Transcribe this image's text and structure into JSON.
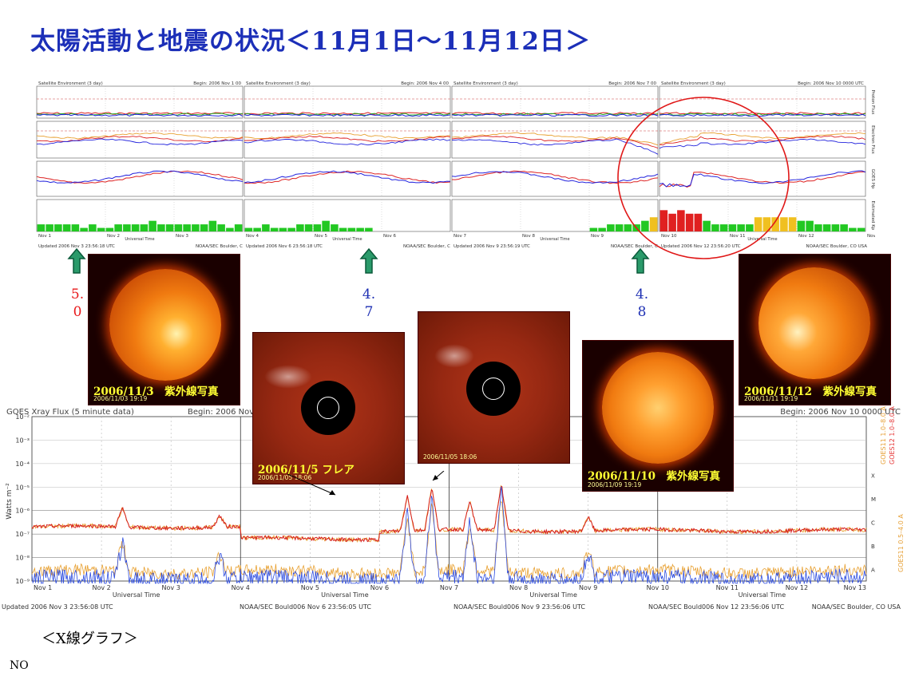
{
  "title": "太陽活動と地震の状況＜11月1日～11月12日＞",
  "xray_caption": "＜X線グラフ＞",
  "footer_note": "NO",
  "magnitudes": [
    {
      "value": "5.0",
      "color": "#e8181a"
    },
    {
      "value": "4.7",
      "color": "#1d2fb3"
    },
    {
      "value": "4.8",
      "color": "#1d2fb3"
    }
  ],
  "photos": [
    {
      "caption": "2006/11/3　紫外線写真",
      "stamp": "2006/11/03 19:19"
    },
    {
      "caption": "2006/11/5  フレア",
      "stamp": "2006/11/05 18:06"
    },
    {
      "caption": "",
      "stamp": "2006/11/05 18:06"
    },
    {
      "caption": "2006/11/10　紫外線写真",
      "stamp": "2006/11/09 19:19"
    },
    {
      "caption": "2006/11/12　紫外線写真",
      "stamp": "2006/11/11 19:19"
    }
  ],
  "env_panels": [
    {
      "header": "Satellite Environment (3 day)",
      "begin": "Begin: 2006 Nov 1 00",
      "updated": "Updated 2006 Nov 3 23:56:18 UTC",
      "days": [
        "Nov 1",
        "Nov 2",
        "Nov 3"
      ],
      "credit": ""
    },
    {
      "header": "Satellite Environment (3 day)",
      "begin": "Begin: 2006 Nov 4 00",
      "updated": "Updated 2006 Nov 6 23:56:18 UTC",
      "days": [
        "Nov 4",
        "Nov 5",
        "Nov 6"
      ],
      "credit": "NOAA/SEC Boulder, C"
    },
    {
      "header": "Satellite Environment (3 day)",
      "begin": "Begin: 2006 Nov 7 00",
      "updated": "Updated 2006 Nov 9 23:56:19 UTC",
      "days": [
        "Nov 7",
        "Nov 8",
        "Nov 9"
      ],
      "credit": "NOAA/SEC Boulder, C"
    },
    {
      "header": "Satellite Environment (3 day)",
      "begin": "Begin: 2006 Nov 10 0000 UTC",
      "updated": "Updated 2006 Nov 12 23:56:20 UTC",
      "days": [
        "Nov 10",
        "Nov 11",
        "Nov 12",
        "Nov 13"
      ],
      "credit": "NOAA/SEC Boulder, C"
    }
  ],
  "env_axis": {
    "time_label": "Universal Time",
    "right_labels": [
      "Proton Flux",
      "Electron Flux",
      "GOES Hp",
      "Estimated Kp"
    ],
    "final_credit": "NOAA/SEC Boulder, CO USA"
  },
  "xray_axis": {
    "title": "GOES Xray Flux (5 minute data)",
    "begin_labels": [
      "Begin:  2006 Nov",
      "Begin:  2006 Nov 10 0000 UTC"
    ],
    "ylabel": "Watts m⁻²",
    "yticks": [
      "10⁻²",
      "10⁻³",
      "10⁻⁴",
      "10⁻⁵",
      "10⁻⁶",
      "10⁻⁷",
      "10⁻⁸",
      "10⁻⁹"
    ],
    "class_labels": [
      "X",
      "M",
      "C",
      "B",
      "A"
    ],
    "xlabel": "Universal Time",
    "legend": [
      {
        "text": "GOES11 1.0–8.0 A",
        "color": "#e7a23a"
      },
      {
        "text": "GOES12 1.0–8.0 A",
        "color": "#e63a3a"
      },
      {
        "text": "GOES11 0.5–4.0 A",
        "color": "#e7a23a"
      },
      {
        "text": "GOES12 0.5–4.0 A",
        "color": "#3a5ae6"
      }
    ],
    "updated": [
      "Updated 2006 Nov  3 23:56:08 UTC",
      "NOAA/SEC Bould006 Nov  6 23:56:05 UTC",
      "NOAA/SEC Bould006 Nov  9 23:56:06 UTC",
      "NOAA/SEC Bould006 Nov 12 23:56:06 UTC",
      "NOAA/SEC Boulder, CO USA"
    ]
  },
  "chart_data": [
    {
      "type": "bar",
      "name_hint": "estimated-kp",
      "x": [
        "Nov 1",
        "Nov 2",
        "Nov 3",
        "Nov 4",
        "Nov 5",
        "Nov 6",
        "Nov 7",
        "Nov 8",
        "Nov 9",
        "Nov 10",
        "Nov 11",
        "Nov 12"
      ],
      "ylim": [
        0,
        9
      ],
      "kp": [
        [
          2,
          2,
          2,
          2,
          2,
          1,
          2,
          1,
          1,
          2,
          2,
          2,
          2,
          3,
          2,
          2,
          2,
          2,
          2,
          2,
          3,
          2,
          1,
          2
        ],
        [
          1,
          1,
          2,
          1,
          1,
          1,
          2,
          2,
          2,
          3,
          2,
          1,
          1,
          1,
          1,
          0,
          0,
          0,
          0,
          0,
          0,
          0,
          0,
          0
        ],
        [
          0,
          0,
          0,
          0,
          0,
          0,
          0,
          0,
          0,
          0,
          0,
          0,
          0,
          0,
          0,
          0,
          1,
          1,
          2,
          2,
          2,
          2,
          3,
          4
        ],
        [
          6,
          5,
          6,
          5,
          5,
          3,
          2,
          2,
          2,
          2,
          2,
          4,
          4,
          4,
          4,
          4,
          3,
          3,
          2,
          2,
          2,
          2,
          1,
          1
        ]
      ]
    },
    {
      "type": "line",
      "name_hint": "goes-xray-flux",
      "x": [
        "Nov 1",
        "Nov 2",
        "Nov 3",
        "Nov 4",
        "Nov 5",
        "Nov 6",
        "Nov 7",
        "Nov 8",
        "Nov 9",
        "Nov 10",
        "Nov 11",
        "Nov 12",
        "Nov 13"
      ],
      "ylim": [
        "1e-9",
        "1e-2"
      ],
      "yscale": "log",
      "flares": [
        {
          "day": "Nov 5",
          "peak": "3e-6"
        },
        {
          "day": "Nov 6",
          "peak": "4e-6"
        }
      ]
    }
  ]
}
